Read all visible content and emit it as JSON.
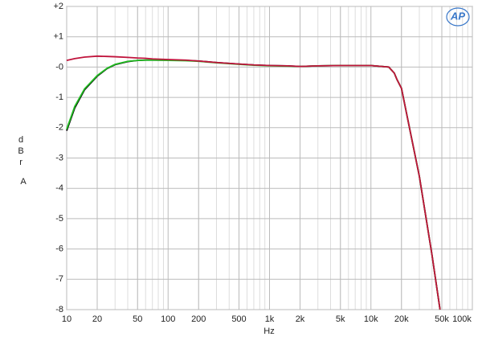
{
  "chart_data": {
    "type": "line",
    "xlabel": "Hz",
    "ylabel": "dBr",
    "yunit": "A",
    "logo": "AP",
    "xscale": "log",
    "grid": true,
    "minor_grid": true,
    "xlim": [
      10,
      100000
    ],
    "ylim": [
      -8,
      2
    ],
    "xticks": [
      10,
      20,
      50,
      100,
      200,
      500,
      {
        "value": 1000,
        "label": "1k"
      },
      {
        "value": 2000,
        "label": "2k"
      },
      {
        "value": 5000,
        "label": "5k"
      },
      {
        "value": 10000,
        "label": "10k"
      },
      {
        "value": 20000,
        "label": "20k"
      },
      {
        "value": 50000,
        "label": "50k"
      },
      {
        "value": 100000,
        "label": "100k"
      }
    ],
    "yticks": [
      {
        "value": 2,
        "label": "+2"
      },
      {
        "value": 1,
        "label": "+1"
      },
      {
        "value": 0,
        "label": "-0"
      },
      -1,
      -2,
      -3,
      -4,
      -5,
      -6,
      -7,
      -8
    ],
    "x": [
      10,
      12,
      15,
      20,
      25,
      30,
      40,
      50,
      60,
      70,
      100,
      150,
      200,
      300,
      500,
      700,
      1000,
      1500,
      2000,
      3000,
      5000,
      7000,
      10000,
      15000,
      17000,
      18000,
      20000,
      25000,
      30000,
      40000,
      48000
    ],
    "series": [
      {
        "color": "#000000",
        "values": [
          -2.1,
          -1.35,
          -0.75,
          -0.3,
          -0.05,
          0.08,
          0.18,
          0.22,
          0.23,
          0.23,
          0.23,
          0.22,
          0.2,
          0.15,
          0.1,
          0.07,
          0.05,
          0.04,
          0.02,
          0.04,
          0.05,
          0.05,
          0.05,
          0.0,
          -0.2,
          -0.4,
          -0.7,
          -2.3,
          -3.6,
          -6.2,
          -8
        ]
      },
      {
        "color": "#22bb22",
        "values": [
          -2.05,
          -1.3,
          -0.72,
          -0.28,
          -0.04,
          0.09,
          0.19,
          0.22,
          0.23,
          0.23,
          0.22,
          0.21,
          0.19,
          0.14,
          0.09,
          0.06,
          0.04,
          0.03,
          0.02,
          0.04,
          0.05,
          0.05,
          0.05,
          0.0,
          -0.2,
          -0.4,
          -0.7,
          -2.3,
          -3.6,
          -6.2,
          -8
        ]
      },
      {
        "color": "#c0143c",
        "values": [
          0.22,
          0.28,
          0.33,
          0.36,
          0.35,
          0.34,
          0.32,
          0.3,
          0.29,
          0.27,
          0.25,
          0.23,
          0.2,
          0.15,
          0.1,
          0.07,
          0.05,
          0.04,
          0.02,
          0.04,
          0.05,
          0.05,
          0.05,
          0.0,
          -0.2,
          -0.4,
          -0.7,
          -2.3,
          -3.6,
          -6.2,
          -8
        ]
      }
    ]
  }
}
